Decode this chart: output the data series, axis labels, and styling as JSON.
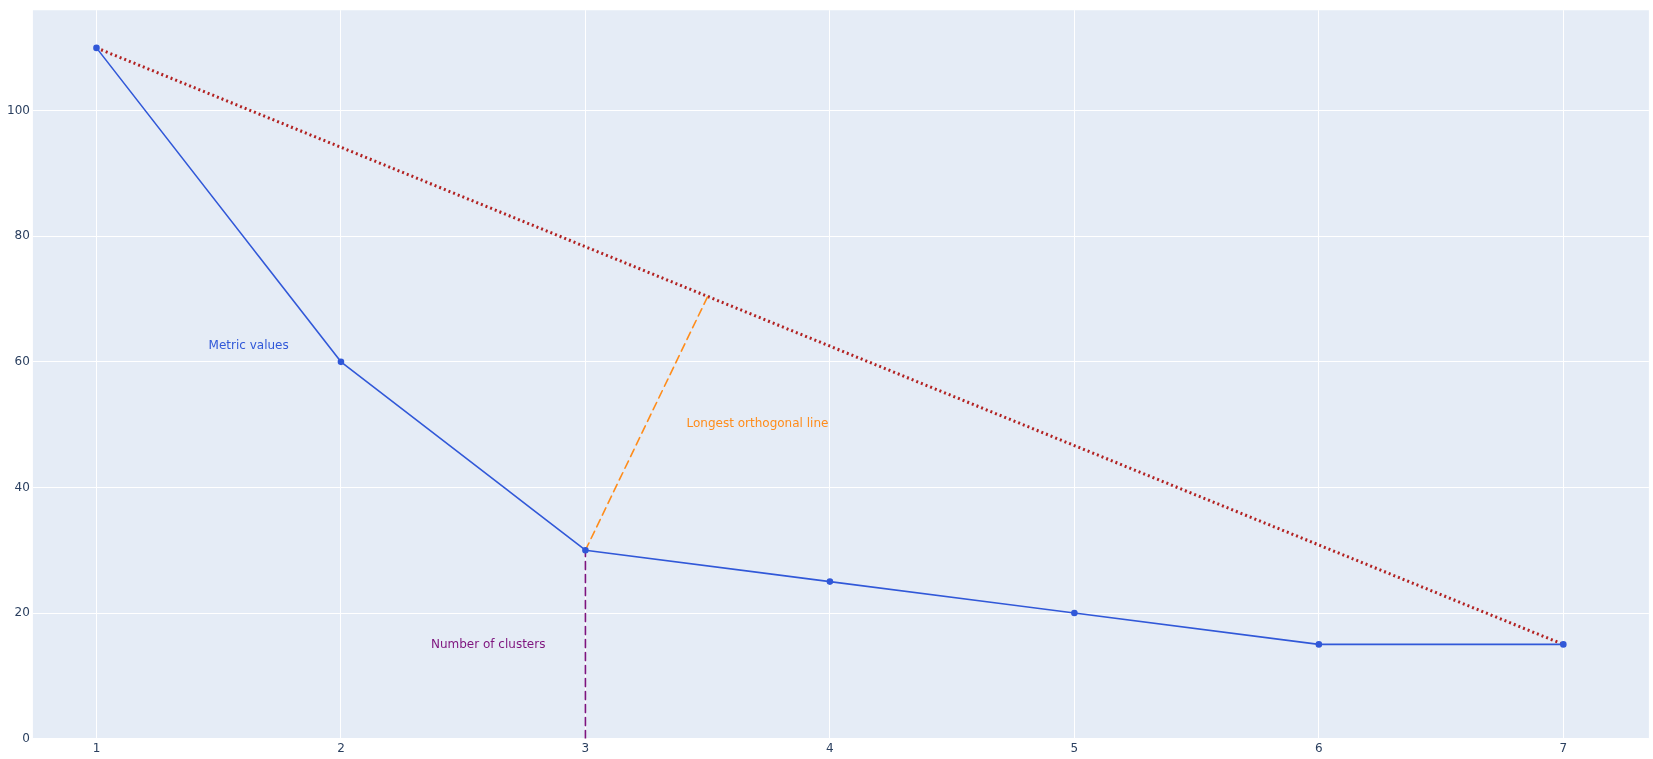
{
  "chart_data": {
    "type": "line",
    "x": [
      1,
      2,
      3,
      4,
      5,
      6,
      7
    ],
    "series": [
      {
        "name": "Metric values",
        "color": "#3158d8",
        "values": [
          110,
          60,
          30,
          25,
          20,
          15,
          15
        ],
        "marker": "circle",
        "line_style": "solid"
      },
      {
        "name": "Longest orthogonal line",
        "color": "#ff8c1a",
        "x": [
          3,
          3.5
        ],
        "values": [
          30,
          70.4
        ],
        "marker": "none",
        "line_style": "dashed"
      },
      {
        "name": "Number of clusters",
        "color": "#7e147e",
        "x": [
          3,
          3
        ],
        "values": [
          0,
          30
        ],
        "marker": "none",
        "line_style": "dashed"
      },
      {
        "color": "#b22222",
        "x": [
          1,
          7
        ],
        "values": [
          110,
          15
        ],
        "marker": "none",
        "line_style": "dotted"
      }
    ],
    "xlim": [
      0.74,
      7.35
    ],
    "ylim": [
      0,
      116
    ],
    "xticks": [
      1,
      2,
      3,
      4,
      5,
      6,
      7
    ],
    "yticks": [
      0,
      20,
      40,
      60,
      80,
      100
    ],
    "grid": true,
    "legend": false
  }
}
